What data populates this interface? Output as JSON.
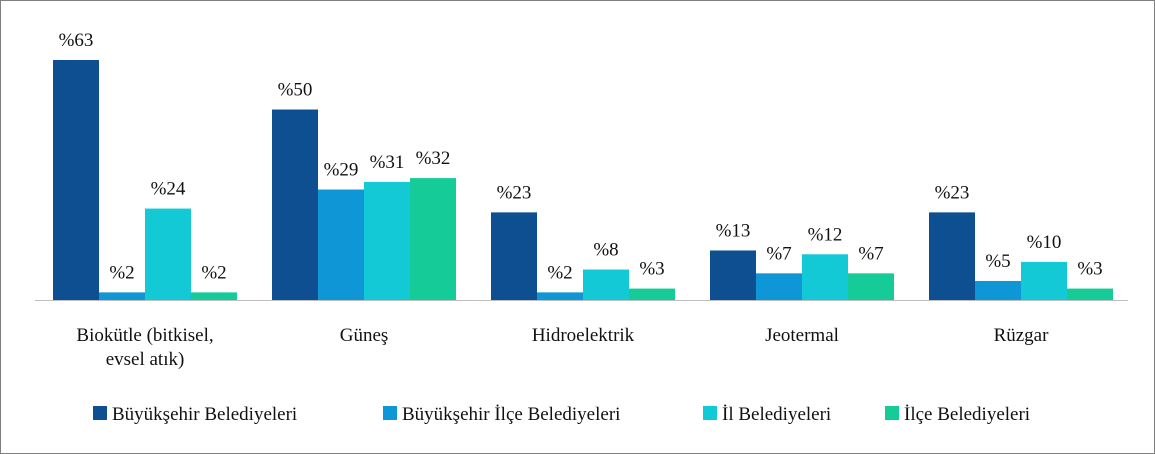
{
  "chart_data": {
    "type": "bar",
    "categories": [
      "Biokütle (bitkisel, evsel atık)",
      "Güneş",
      "Hidroelektrik",
      "Jeotermal",
      "Rüzgar"
    ],
    "series": [
      {
        "name": "Büyükşehir Belediyeleri",
        "color": "#0d4f91",
        "values": [
          63,
          50,
          23,
          13,
          23
        ],
        "value_labels": [
          "%63",
          "%50",
          "%23",
          "%13",
          "%23"
        ]
      },
      {
        "name": "Büyükşehir İlçe Belediyeleri",
        "color": "#0f96d6",
        "values": [
          2,
          29,
          2,
          7,
          5
        ],
        "value_labels": [
          "%2",
          "%29",
          "%2",
          "%7",
          "%5"
        ]
      },
      {
        "name": "İl Belediyeleri",
        "color": "#14c9d6",
        "values": [
          24,
          31,
          8,
          12,
          10
        ],
        "value_labels": [
          "%24",
          "%31",
          "%8",
          "%12",
          "%10"
        ]
      },
      {
        "name": "İlçe Belediyeleri",
        "color": "#15cc98",
        "values": [
          2,
          32,
          3,
          7,
          3
        ],
        "value_labels": [
          "%2",
          "%32",
          "%3",
          "%7",
          "%3"
        ]
      }
    ],
    "legend": "bottom"
  }
}
